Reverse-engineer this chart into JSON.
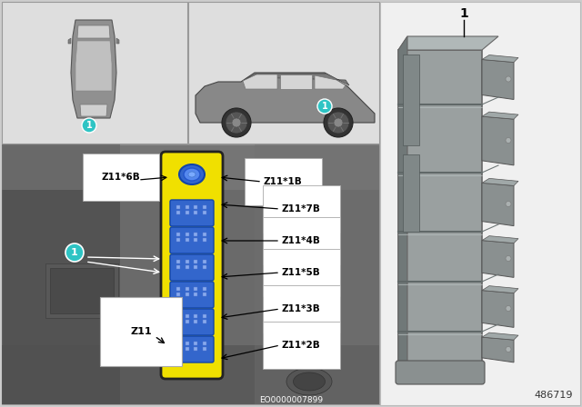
{
  "bg_color": "#cccccc",
  "top_panel_bg": "#dedede",
  "engine_panel_bg": "#7a7a7a",
  "right_panel_bg": "#f0f0f0",
  "teal_color": "#2ec4c4",
  "white": "#ffffff",
  "black": "#000000",
  "yellow": "#f0e000",
  "blue_conn": "#3366cc",
  "blue_conn_light": "#5588dd",
  "module_border": "#222222",
  "label_bg": "#ffffff",
  "part_number": "486719",
  "diagram_code": "EO0000007899",
  "connector_labels_left": [
    "Z11*6B"
  ],
  "connector_labels_right": [
    "Z11*1B",
    "Z11*7B",
    "Z11*4B",
    "Z11*5B",
    "Z11*3B",
    "Z11*2B"
  ],
  "z11_label": "Z11",
  "dark_grey": "#555555",
  "mid_grey": "#888888",
  "light_grey": "#aaaaaa",
  "module_grey": "#9aa0a0",
  "module_grey_dark": "#707878",
  "module_grey_light": "#b0b8b8",
  "connector_grey": "#8a9090"
}
